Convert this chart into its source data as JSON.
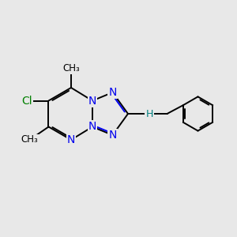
{
  "background_color": "#e8e8e8",
  "bond_color": "#000000",
  "n_color": "#0000ee",
  "cl_color": "#008000",
  "nh_color": "#008080",
  "bond_width": 1.4,
  "font_size": 10,
  "fig_size": [
    3.0,
    3.0
  ],
  "dpi": 100,
  "xlim": [
    0,
    10
  ],
  "ylim": [
    0,
    10
  ]
}
